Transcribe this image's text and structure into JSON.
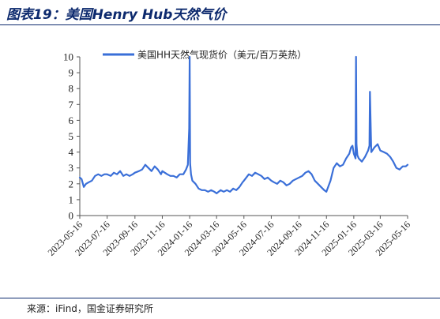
{
  "header": {
    "title": "图表19：美国Henry Hub天然气价"
  },
  "footer": {
    "source": "来源：iFind，国金证券研究所"
  },
  "colors": {
    "series": "#3a6fd8",
    "rule": "#0d2a6e",
    "axis": "#555555"
  },
  "chart_data": {
    "type": "line",
    "title": "",
    "xlabel": "",
    "ylabel": "",
    "ylim": [
      0,
      10
    ],
    "yticks": [
      "0",
      "1",
      "2",
      "3",
      "4",
      "5",
      "6",
      "7",
      "8",
      "9",
      "10"
    ],
    "xticks": [
      "2023-05-16",
      "2023-07-16",
      "2023-09-16",
      "2023-11-16",
      "2024-01-16",
      "2024-03-16",
      "2024-05-16",
      "2024-07-16",
      "2024-09-16",
      "2024-11-16",
      "2025-01-16",
      "2025-03-16",
      "2025-05-16"
    ],
    "legend": "top-center",
    "grid": false,
    "series": [
      {
        "name": "美国HH天然气现货价（美元/百万英热）",
        "x": [
          "2023-05-16",
          "2023-05-20",
          "2023-05-25",
          "2023-05-30",
          "2023-06-05",
          "2023-06-12",
          "2023-06-19",
          "2023-06-26",
          "2023-07-03",
          "2023-07-10",
          "2023-07-16",
          "2023-07-24",
          "2023-07-31",
          "2023-08-07",
          "2023-08-14",
          "2023-08-21",
          "2023-08-28",
          "2023-09-04",
          "2023-09-11",
          "2023-09-16",
          "2023-09-25",
          "2023-10-02",
          "2023-10-09",
          "2023-10-16",
          "2023-10-23",
          "2023-10-30",
          "2023-11-06",
          "2023-11-13",
          "2023-11-16",
          "2023-11-27",
          "2023-12-04",
          "2023-12-11",
          "2023-12-18",
          "2023-12-25",
          "2024-01-02",
          "2024-01-08",
          "2024-01-12",
          "2024-01-15",
          "2024-01-16",
          "2024-01-17",
          "2024-01-19",
          "2024-01-22",
          "2024-01-29",
          "2024-02-05",
          "2024-02-12",
          "2024-02-19",
          "2024-02-26",
          "2024-03-04",
          "2024-03-11",
          "2024-03-16",
          "2024-03-25",
          "2024-04-01",
          "2024-04-08",
          "2024-04-15",
          "2024-04-22",
          "2024-04-29",
          "2024-05-06",
          "2024-05-13",
          "2024-05-16",
          "2024-05-27",
          "2024-06-03",
          "2024-06-10",
          "2024-06-17",
          "2024-06-24",
          "2024-07-01",
          "2024-07-08",
          "2024-07-16",
          "2024-07-22",
          "2024-07-29",
          "2024-08-05",
          "2024-08-12",
          "2024-08-19",
          "2024-08-26",
          "2024-09-02",
          "2024-09-09",
          "2024-09-16",
          "2024-09-23",
          "2024-09-30",
          "2024-10-07",
          "2024-10-14",
          "2024-10-21",
          "2024-10-28",
          "2024-11-04",
          "2024-11-11",
          "2024-11-16",
          "2024-11-25",
          "2024-12-02",
          "2024-12-09",
          "2024-12-16",
          "2024-12-23",
          "2024-12-30",
          "2025-01-06",
          "2025-01-10",
          "2025-01-13",
          "2025-01-16",
          "2025-01-20",
          "2025-01-21",
          "2025-01-22",
          "2025-01-24",
          "2025-01-27",
          "2025-02-03",
          "2025-02-10",
          "2025-02-17",
          "2025-02-20",
          "2025-02-21",
          "2025-02-24",
          "2025-03-03",
          "2025-03-10",
          "2025-03-16",
          "2025-03-24",
          "2025-03-31",
          "2025-04-07",
          "2025-04-14",
          "2025-04-21",
          "2025-04-28",
          "2025-05-05",
          "2025-05-12",
          "2025-05-16"
        ],
        "values": [
          2.4,
          2.3,
          1.8,
          2.0,
          2.1,
          2.2,
          2.5,
          2.6,
          2.5,
          2.6,
          2.6,
          2.5,
          2.7,
          2.6,
          2.8,
          2.5,
          2.6,
          2.5,
          2.6,
          2.7,
          2.8,
          2.9,
          3.2,
          3.0,
          2.8,
          3.1,
          2.9,
          2.6,
          2.8,
          2.6,
          2.5,
          2.5,
          2.4,
          2.6,
          2.6,
          2.9,
          3.2,
          5.5,
          10.0,
          3.3,
          2.6,
          2.2,
          2.0,
          1.7,
          1.6,
          1.6,
          1.5,
          1.6,
          1.5,
          1.4,
          1.6,
          1.5,
          1.6,
          1.5,
          1.7,
          1.6,
          1.8,
          2.1,
          2.2,
          2.6,
          2.5,
          2.7,
          2.6,
          2.5,
          2.3,
          2.4,
          2.2,
          2.1,
          2.0,
          2.2,
          2.1,
          1.9,
          2.0,
          2.2,
          2.3,
          2.4,
          2.5,
          2.7,
          2.8,
          2.6,
          2.2,
          2.0,
          1.8,
          1.6,
          1.5,
          2.2,
          3.0,
          3.3,
          3.1,
          3.2,
          3.6,
          3.9,
          4.3,
          4.4,
          3.9,
          3.6,
          10.0,
          4.5,
          3.8,
          3.6,
          3.4,
          3.7,
          4.1,
          4.4,
          7.8,
          4.0,
          4.3,
          4.5,
          4.1,
          4.0,
          3.9,
          3.7,
          3.4,
          3.0,
          2.9,
          3.1,
          3.1,
          3.2
        ]
      }
    ]
  }
}
